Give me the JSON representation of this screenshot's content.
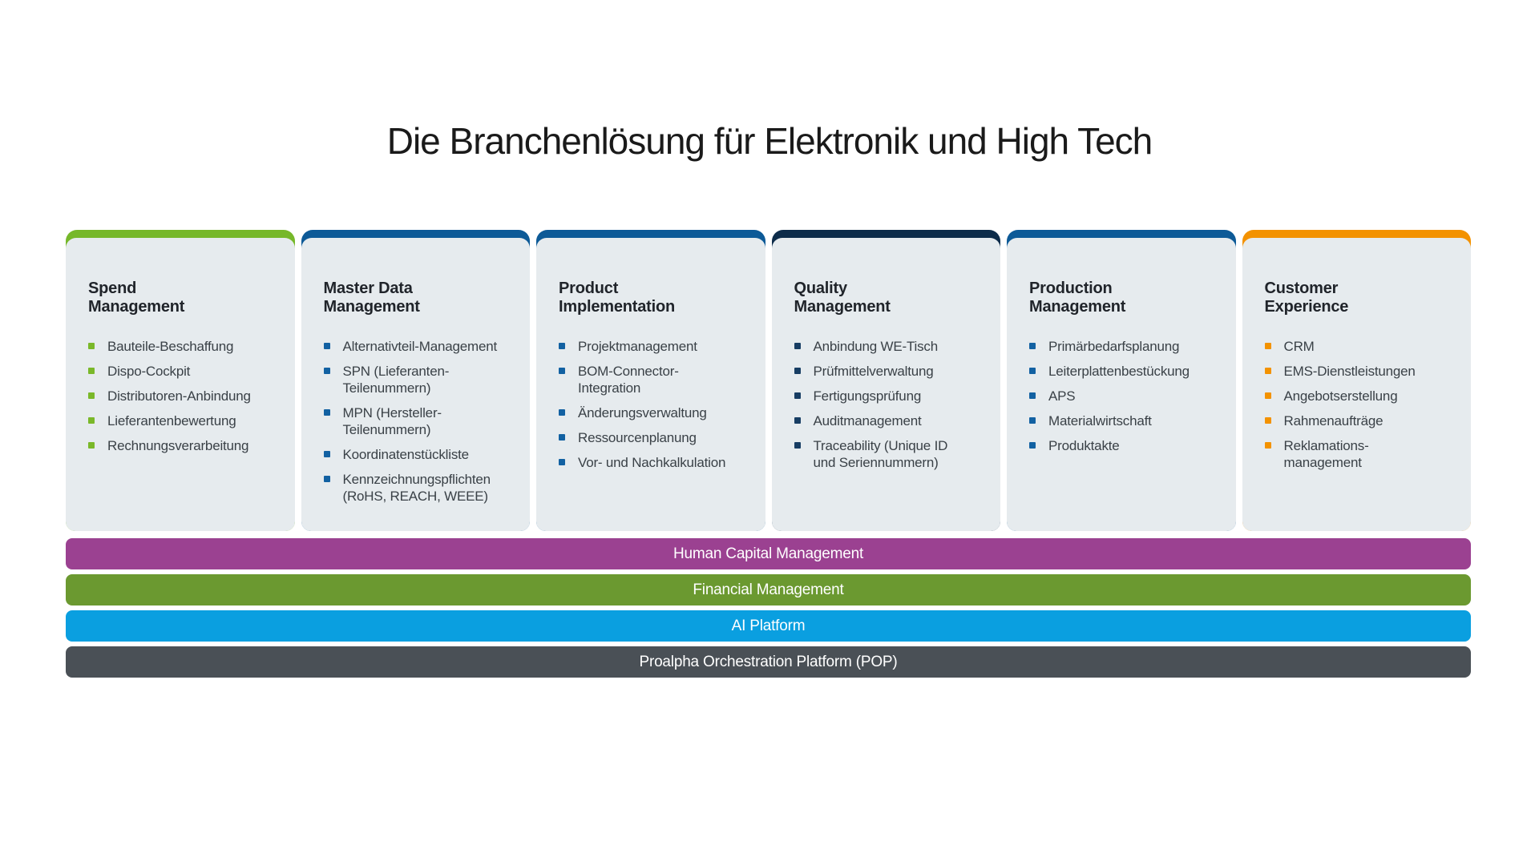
{
  "title": "Die Branchenlösung für Elektronik und High Tech",
  "columns": [
    {
      "id": "spend-management",
      "heading": "Spend\nManagement",
      "accent_color": "#76b82a",
      "bullet_color": "#7ab829",
      "items": [
        "Bauteile-Beschaffung",
        "Dispo-Cockpit",
        "Distributoren-Anbindung",
        "Lieferantenbewertung",
        "Rechnungsverarbeitung"
      ]
    },
    {
      "id": "master-data-management",
      "heading": "Master Data\nManagement",
      "accent_color": "#0d5a97",
      "bullet_color": "#1261a2",
      "items": [
        "Alternativteil-Management",
        "SPN (Lieferanten-\nTeilenummern)",
        "MPN (Hersteller-\nTeilenummern)",
        "Koordinatenstückliste",
        "Kennzeichnungspflichten\n(RoHS, REACH, WEEE)"
      ]
    },
    {
      "id": "product-implementation",
      "heading": "Product\nImplementation",
      "accent_color": "#0d5a97",
      "bullet_color": "#1261a2",
      "items": [
        "Projektmanagement",
        "BOM-Connector-\nIntegration",
        "Änderungsverwaltung",
        "Ressourcenplanung",
        "Vor- und Nachkalkulation"
      ]
    },
    {
      "id": "quality-management",
      "heading": "Quality\nManagement",
      "accent_color": "#0d2c4a",
      "bullet_color": "#173d63",
      "items": [
        "Anbindung WE-Tisch",
        "Prüfmittelverwaltung",
        "Fertigungsprüfung",
        "Auditmanagement",
        "Traceability (Unique ID\nund Seriennummern)"
      ]
    },
    {
      "id": "production-management",
      "heading": "Production\nManagement",
      "accent_color": "#0d5a97",
      "bullet_color": "#1261a2",
      "items": [
        "Primärbedarfsplanung",
        "Leiterplattenbestückung",
        "APS",
        "Materialwirtschaft",
        "Produktakte"
      ]
    },
    {
      "id": "customer-experience",
      "heading": "Customer\nExperience",
      "accent_color": "#f39200",
      "bullet_color": "#f39200",
      "items": [
        "CRM",
        "EMS-Dienstleistungen",
        "Angebotserstellung",
        "Rahmenaufträge",
        "Reklamations-\nmanagement"
      ]
    }
  ],
  "platform_bars": [
    {
      "id": "human-capital-management",
      "label": "Human Capital Management",
      "color": "#9b4191"
    },
    {
      "id": "financial-management",
      "label": "Financial Management",
      "color": "#6b9930"
    },
    {
      "id": "ai-platform",
      "label": "AI Platform",
      "color": "#0a9fe0"
    },
    {
      "id": "proalpha-orchestration-platform",
      "label": "Proalpha Orchestration Platform (POP)",
      "color": "#4a5056"
    }
  ],
  "colors": {
    "page_background": "#ffffff",
    "card_background": "#e6ebee",
    "title_text": "#1a1a1a",
    "heading_text": "#20242a",
    "item_text": "#3a4147",
    "bar_text": "#ffffff"
  }
}
